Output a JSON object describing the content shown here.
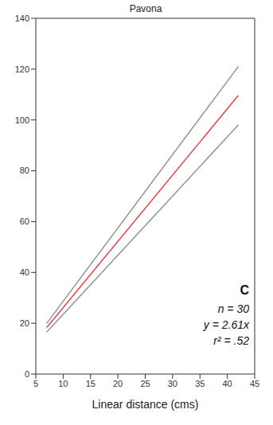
{
  "chart_data": {
    "type": "line",
    "title": "Pavona",
    "x_label": "Linear distance (cms)",
    "x": [
      7,
      42
    ],
    "series": [
      {
        "color": "#8c9499",
        "values": [
          20,
          121
        ]
      },
      {
        "color": "#e0454a",
        "values": [
          18.3,
          109.6
        ]
      },
      {
        "color": "#8c9499",
        "values": [
          16.5,
          98
        ]
      }
    ],
    "xlim": [
      5,
      45
    ],
    "xticks": [
      5,
      10,
      15,
      20,
      25,
      30,
      35,
      40,
      45
    ],
    "ylim": [
      0,
      140
    ],
    "yticks": [
      0,
      20,
      40,
      60,
      80,
      100,
      120,
      140
    ],
    "grid": false,
    "annotations": [
      "C",
      "n = 30",
      "y = 2.61x",
      "r² = .52"
    ]
  }
}
